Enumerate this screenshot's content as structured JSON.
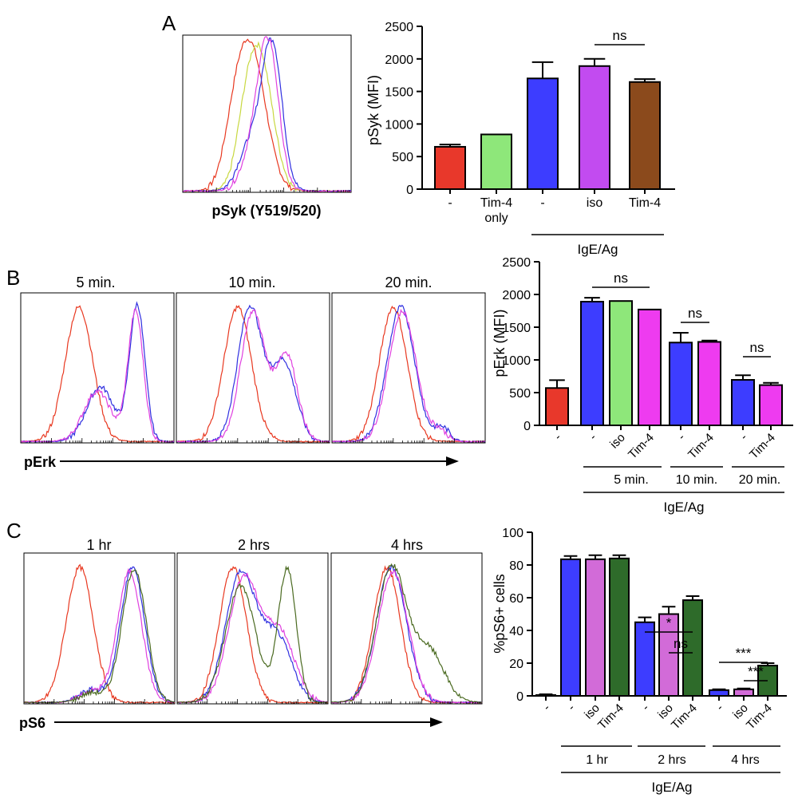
{
  "panel_labels": [
    "A",
    "B",
    "C"
  ],
  "panel_a": {
    "histogram_xlabel": "pSyk (Y519/520)",
    "group_label": "IgE/Ag"
  },
  "panel_b": {
    "histogram_titles": [
      "5 min.",
      "10 min.",
      "20 min."
    ],
    "histogram_xlabel": "pErk",
    "time_labels": [
      "5 min.",
      "10 min.",
      "20 min."
    ],
    "group_label": "IgE/Ag"
  },
  "panel_c": {
    "histogram_titles": [
      "1 hr",
      "2 hrs",
      "4 hrs"
    ],
    "histogram_xlabel": "pS6",
    "time_labels": [
      "1 hr",
      "2 hrs",
      "4 hrs"
    ],
    "group_label": "IgE/Ag"
  },
  "colors": {
    "red": "#e8382b",
    "green": "#8ee77a",
    "blue": "#3d3dff",
    "purple": "#c24bf0",
    "magenta": "#ee3bf0",
    "orchid": "#d26bd8",
    "brown": "#8b4a1c",
    "darkgreen": "#2e6b2a",
    "curve_red": "#e83820",
    "curve_yellow": "#c8d840",
    "curve_blue": "#3030e0",
    "curve_magenta": "#e040e0",
    "curve_brown": "#8a2a1a",
    "curve_olive": "#4a6a20"
  },
  "chart_data": [
    {
      "id": "A-bar",
      "type": "bar",
      "ylabel": "pSyk (MFI)",
      "ylim": [
        0,
        2500
      ],
      "yticks": [
        0,
        500,
        1000,
        1500,
        2000,
        2500
      ],
      "categories": [
        "-",
        "Tim-4\nonly",
        "-",
        "iso",
        "Tim-4"
      ],
      "values": [
        650,
        840,
        1700,
        1890,
        1645
      ],
      "errors": [
        35,
        0,
        250,
        110,
        45
      ],
      "colors": [
        "red",
        "green",
        "blue",
        "purple",
        "brown"
      ],
      "significance": [
        {
          "from": 3,
          "to": 4,
          "label": "ns"
        }
      ]
    },
    {
      "id": "B-bar",
      "type": "bar",
      "ylabel": "pErk (MFI)",
      "ylim": [
        0,
        2500
      ],
      "yticks": [
        0,
        500,
        1000,
        1500,
        2000,
        2500
      ],
      "categories": [
        "-",
        "-",
        "iso",
        "Tim-4",
        "-",
        "Tim-4",
        "-",
        "Tim-4"
      ],
      "values": [
        570,
        1890,
        1900,
        1770,
        1265,
        1275,
        695,
        615
      ],
      "errors": [
        120,
        60,
        0,
        0,
        150,
        20,
        70,
        35
      ],
      "colors": [
        "red",
        "blue",
        "green",
        "magenta",
        "blue",
        "magenta",
        "blue",
        "magenta"
      ],
      "significance": [
        {
          "from": 1,
          "to": 3,
          "label": "ns"
        },
        {
          "from": 4,
          "to": 5,
          "label": "ns"
        },
        {
          "from": 6,
          "to": 7,
          "label": "ns"
        }
      ]
    },
    {
      "id": "C-bar",
      "type": "bar",
      "ylabel": "%pS6+ cells",
      "ylim": [
        0,
        100
      ],
      "yticks": [
        0,
        20,
        40,
        60,
        80,
        100
      ],
      "categories": [
        "-",
        "-",
        "iso",
        "Tim-4",
        "-",
        "iso",
        "Tim-4",
        "-",
        "iso",
        "Tim-4"
      ],
      "values": [
        0.5,
        83.5,
        83.5,
        84,
        45,
        50,
        58.5,
        3.5,
        4,
        18.5
      ],
      "errors": [
        0.5,
        2,
        2.5,
        2,
        3,
        4.5,
        2.5,
        0.5,
        0.5,
        1.5
      ],
      "colors": [
        "red",
        "blue",
        "orchid",
        "darkgreen",
        "blue",
        "orchid",
        "darkgreen",
        "blue",
        "orchid",
        "darkgreen"
      ],
      "significance": [
        {
          "from": 4,
          "to": 6,
          "label": "*"
        },
        {
          "from": 5,
          "to": 6,
          "label": "ns"
        },
        {
          "from": 7,
          "to": 9,
          "label": "***"
        },
        {
          "from": 8,
          "to": 9,
          "label": "***"
        }
      ]
    },
    {
      "id": "A-hist",
      "type": "line",
      "series": [
        {
          "color": "curve_red",
          "peaks": [
            [
              0.4,
              0.09,
              0.95
            ],
            [
              0.3,
              0.06,
              0.18
            ]
          ]
        },
        {
          "color": "curve_yellow",
          "peaks": [
            [
              0.45,
              0.08,
              0.93
            ],
            [
              0.36,
              0.05,
              0.15
            ]
          ]
        },
        {
          "color": "curve_blue",
          "peaks": [
            [
              0.53,
              0.06,
              0.96
            ],
            [
              0.4,
              0.07,
              0.3
            ]
          ]
        },
        {
          "color": "curve_magenta",
          "peaks": [
            [
              0.51,
              0.06,
              0.92
            ],
            [
              0.42,
              0.07,
              0.25
            ]
          ]
        }
      ]
    },
    {
      "id": "B-hist-5",
      "type": "line",
      "series": [
        {
          "color": "curve_red",
          "peaks": [
            [
              0.38,
              0.09,
              0.93
            ]
          ]
        },
        {
          "color": "curve_blue",
          "peaks": [
            [
              0.52,
              0.09,
              0.38
            ],
            [
              0.76,
              0.05,
              0.94
            ]
          ]
        },
        {
          "color": "curve_magenta",
          "peaks": [
            [
              0.5,
              0.09,
              0.35
            ],
            [
              0.75,
              0.05,
              0.9
            ]
          ]
        }
      ]
    },
    {
      "id": "B-hist-10",
      "type": "line",
      "series": [
        {
          "color": "curve_red",
          "peaks": [
            [
              0.4,
              0.09,
              0.93
            ]
          ]
        },
        {
          "color": "curve_blue",
          "peaks": [
            [
              0.48,
              0.08,
              0.93
            ],
            [
              0.7,
              0.08,
              0.55
            ]
          ]
        },
        {
          "color": "curve_magenta",
          "peaks": [
            [
              0.5,
              0.08,
              0.9
            ],
            [
              0.72,
              0.07,
              0.6
            ]
          ]
        }
      ]
    },
    {
      "id": "B-hist-20",
      "type": "line",
      "series": [
        {
          "color": "curve_red",
          "peaks": [
            [
              0.4,
              0.09,
              0.93
            ]
          ]
        },
        {
          "color": "curve_blue",
          "peaks": [
            [
              0.45,
              0.09,
              0.93
            ],
            [
              0.72,
              0.05,
              0.1
            ]
          ]
        },
        {
          "color": "curve_magenta",
          "peaks": [
            [
              0.46,
              0.09,
              0.9
            ],
            [
              0.7,
              0.05,
              0.08
            ]
          ]
        }
      ]
    },
    {
      "id": "C-hist-1",
      "type": "line",
      "series": [
        {
          "color": "curve_red",
          "peaks": [
            [
              0.37,
              0.09,
              0.93
            ]
          ]
        },
        {
          "color": "curve_blue",
          "peaks": [
            [
              0.72,
              0.08,
              0.93
            ],
            [
              0.45,
              0.08,
              0.09
            ]
          ]
        },
        {
          "color": "curve_magenta",
          "peaks": [
            [
              0.7,
              0.08,
              0.9
            ],
            [
              0.45,
              0.08,
              0.08
            ]
          ]
        },
        {
          "color": "curve_olive",
          "peaks": [
            [
              0.73,
              0.08,
              0.92
            ],
            [
              0.45,
              0.08,
              0.07
            ]
          ]
        }
      ]
    },
    {
      "id": "C-hist-2",
      "type": "line",
      "series": [
        {
          "color": "curve_red",
          "peaks": [
            [
              0.37,
              0.09,
              0.93
            ]
          ]
        },
        {
          "color": "curve_blue",
          "peaks": [
            [
              0.42,
              0.1,
              0.88
            ],
            [
              0.66,
              0.1,
              0.45
            ]
          ]
        },
        {
          "color": "curve_magenta",
          "peaks": [
            [
              0.44,
              0.1,
              0.85
            ],
            [
              0.68,
              0.1,
              0.48
            ]
          ]
        },
        {
          "color": "curve_olive",
          "peaks": [
            [
              0.42,
              0.1,
              0.8
            ],
            [
              0.73,
              0.06,
              0.92
            ]
          ]
        }
      ]
    },
    {
      "id": "C-hist-4",
      "type": "line",
      "series": [
        {
          "color": "curve_red",
          "peaks": [
            [
              0.37,
              0.09,
              0.93
            ]
          ]
        },
        {
          "color": "curve_blue",
          "peaks": [
            [
              0.4,
              0.1,
              0.93
            ]
          ]
        },
        {
          "color": "curve_magenta",
          "peaks": [
            [
              0.41,
              0.1,
              0.9
            ]
          ]
        },
        {
          "color": "curve_olive",
          "peaks": [
            [
              0.4,
              0.1,
              0.93
            ],
            [
              0.65,
              0.1,
              0.35
            ]
          ]
        }
      ]
    }
  ]
}
